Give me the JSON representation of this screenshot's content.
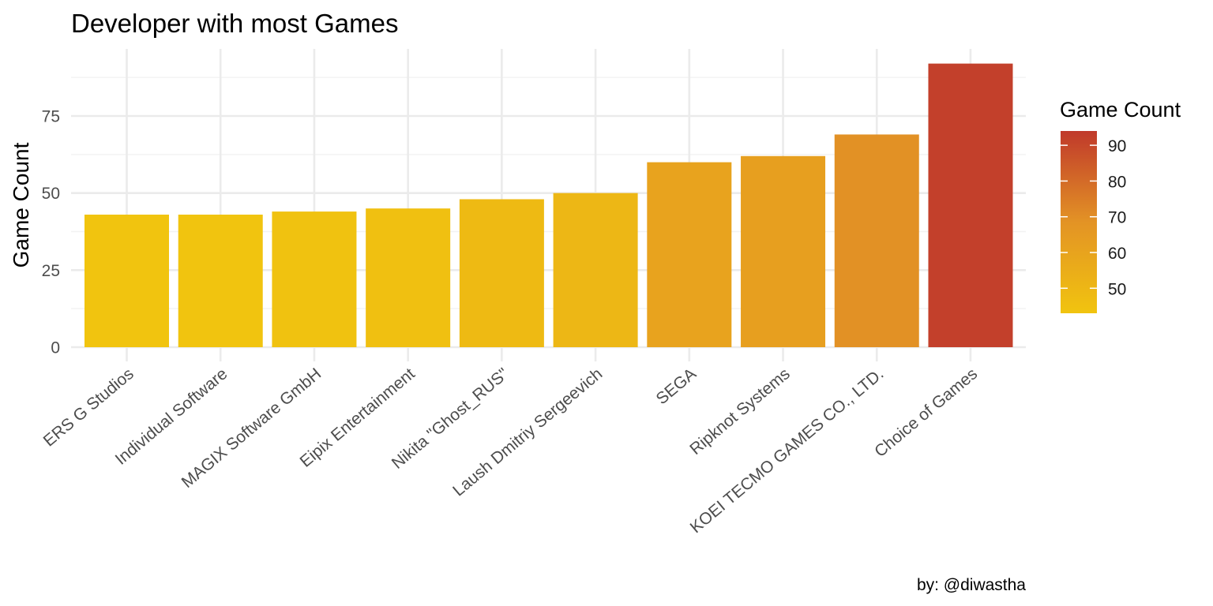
{
  "chart_data": {
    "type": "bar",
    "title": "Developer with most Games",
    "xlabel": "",
    "ylabel": "Game Count",
    "caption": "by: @diwastha",
    "categories": [
      "ERS G Studios",
      "Individual Software",
      "MAGIX Software GmbH",
      "Eipix Entertainment",
      "Nikita \"Ghost_RUS\"",
      "Laush Dmitriy Sergeevich",
      "SEGA",
      "Ripknot Systems",
      "KOEI TECMO GAMES CO., LTD.",
      "Choice of Games"
    ],
    "values": [
      43,
      43,
      44,
      45,
      48,
      50,
      60,
      62,
      69,
      92
    ],
    "ylim": [
      0,
      92
    ],
    "yticks": [
      "0",
      "25",
      "50",
      "75"
    ],
    "grid": true,
    "legend": {
      "title": "Game Count",
      "position": "right",
      "labels": [
        "50",
        "60",
        "70",
        "80",
        "90"
      ],
      "colorbar_range": [
        43,
        94
      ],
      "low_color": "#F1C40F",
      "mid_color": "#E39325",
      "high_color": "#C0392B"
    }
  }
}
